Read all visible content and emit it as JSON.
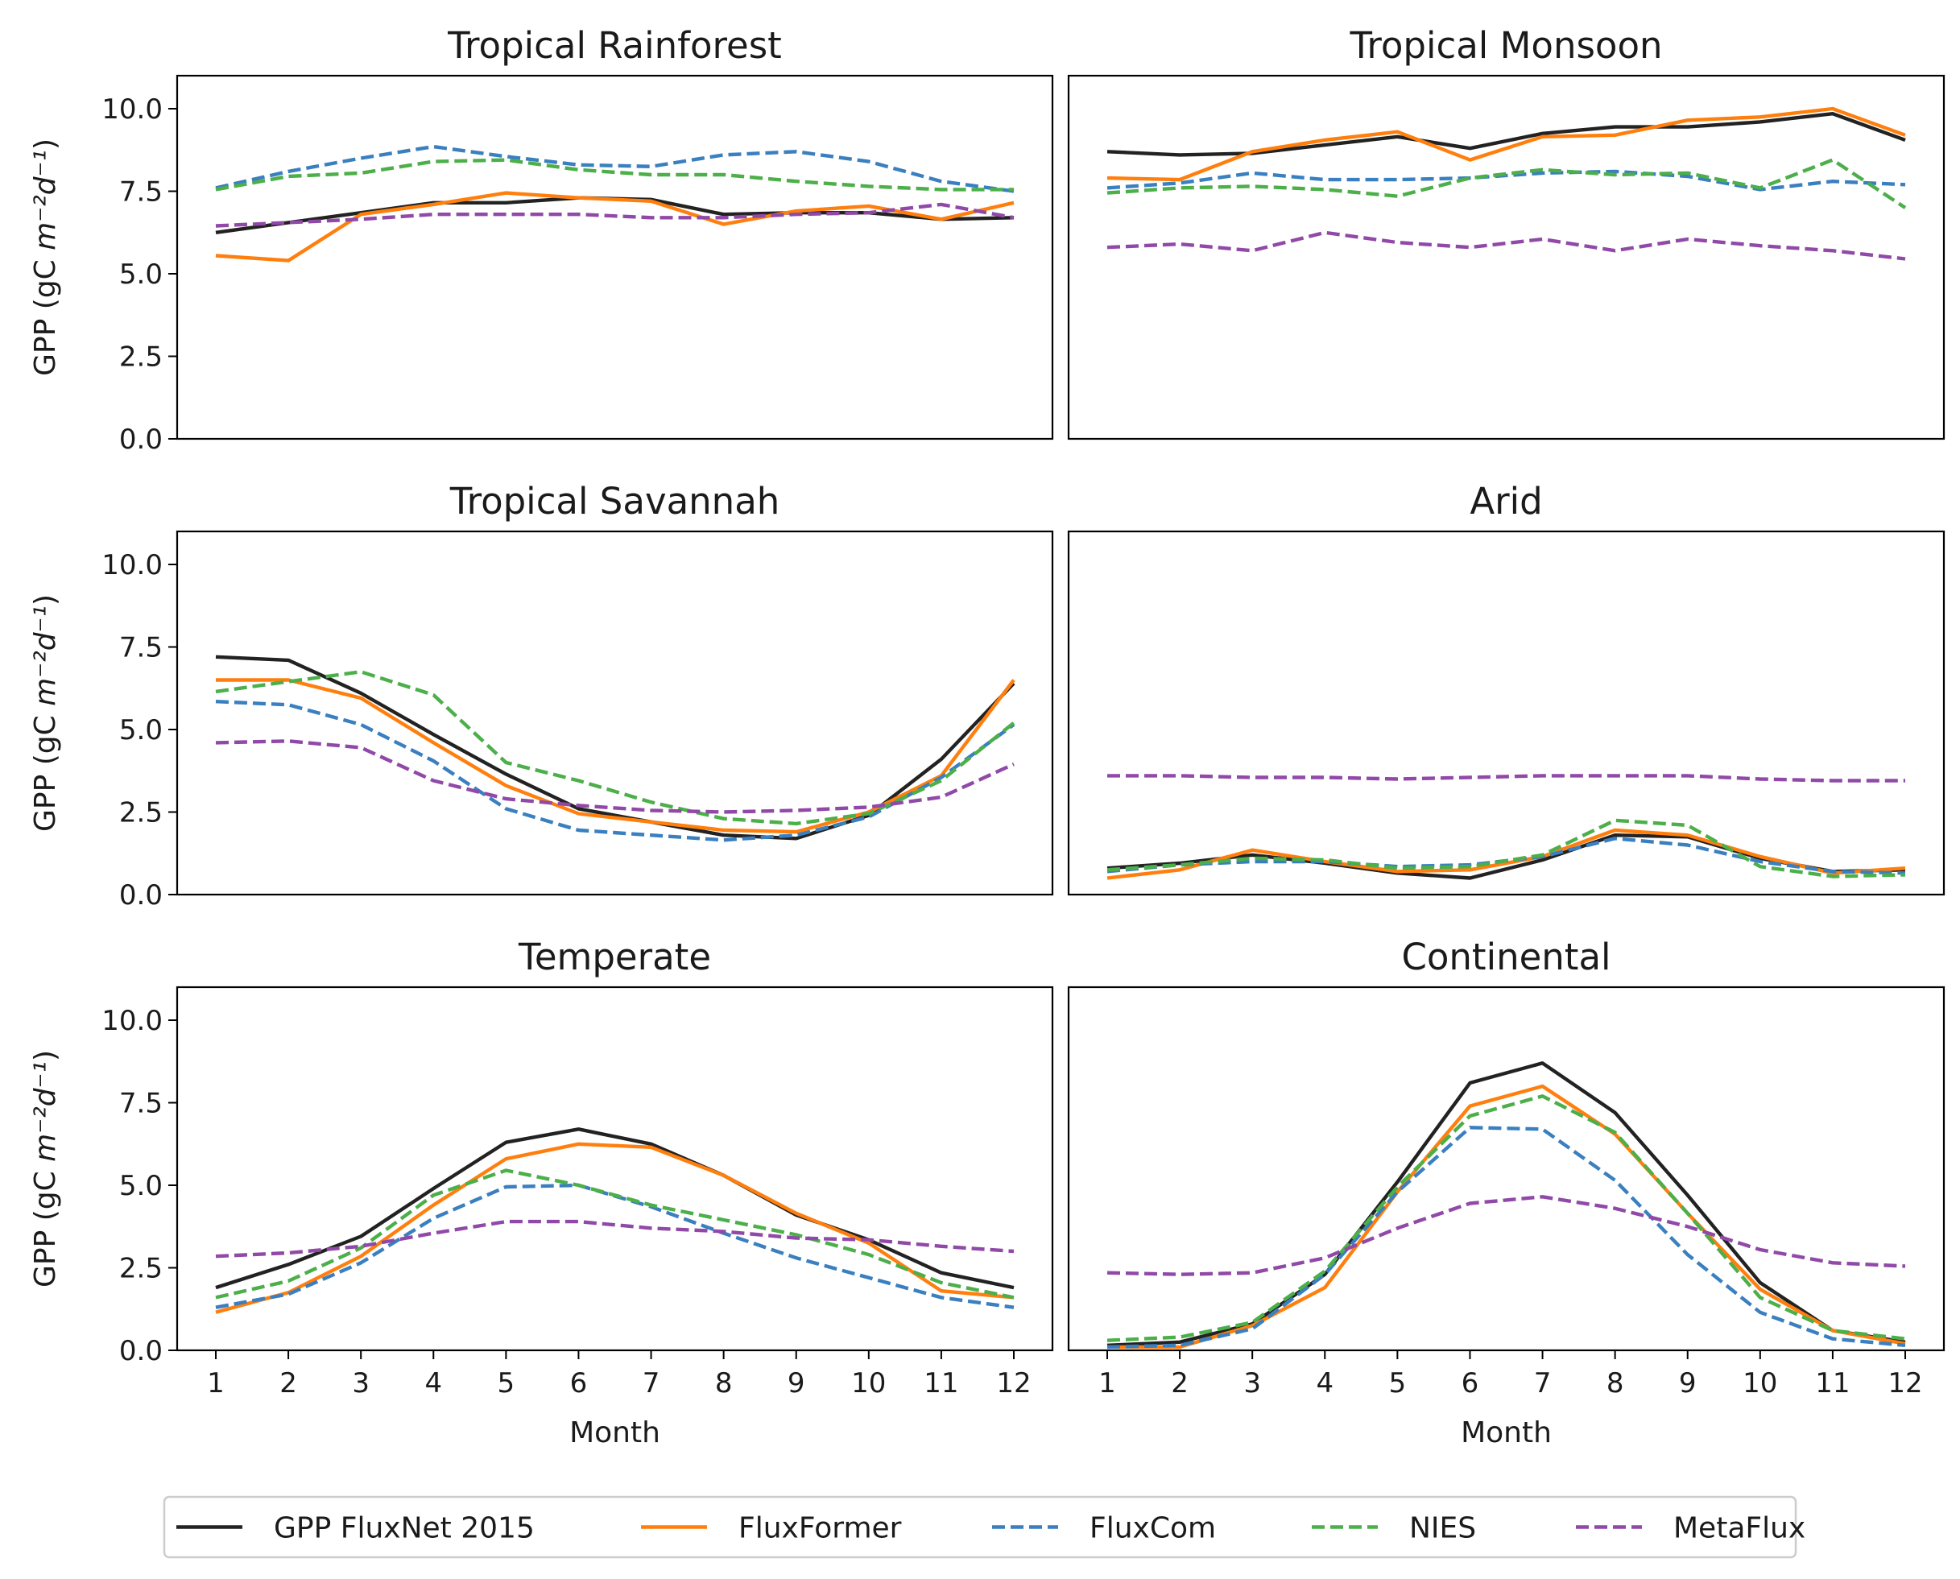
{
  "chart_data": {
    "type": "line",
    "ylabel_main": "GPP (gC ",
    "ylabel_math": "m⁻²d⁻¹",
    "ylabel_close": ")",
    "xlabel": "Month",
    "ylim": [
      0,
      11
    ],
    "yticks": [
      "0.0",
      "2.5",
      "5.0",
      "7.5",
      "10.0"
    ],
    "x": [
      1,
      2,
      3,
      4,
      5,
      6,
      7,
      8,
      9,
      10,
      11,
      12
    ],
    "series_styles": [
      {
        "name": "GPP FluxNet 2015",
        "color": "#222222",
        "dash": "solid"
      },
      {
        "name": "FluxFormer",
        "color": "#ff7f0e",
        "dash": "solid"
      },
      {
        "name": "FluxCom",
        "color": "#3a7fbf",
        "dash": "dashed"
      },
      {
        "name": "NIES",
        "color": "#4caf4a",
        "dash": "dashed"
      },
      {
        "name": "MetaFlux",
        "color": "#9149a8",
        "dash": "dashed"
      }
    ],
    "panels": [
      {
        "title": "Tropical Rainforest",
        "series": [
          [
            6.25,
            6.55,
            6.85,
            7.15,
            7.15,
            7.3,
            7.25,
            6.8,
            6.85,
            6.85,
            6.65,
            6.7
          ],
          [
            5.55,
            5.4,
            6.8,
            7.1,
            7.45,
            7.3,
            7.2,
            6.5,
            6.9,
            7.05,
            6.65,
            7.15
          ],
          [
            7.6,
            8.1,
            8.5,
            8.85,
            8.55,
            8.3,
            8.25,
            8.6,
            8.7,
            8.4,
            7.8,
            7.5
          ],
          [
            7.55,
            7.95,
            8.05,
            8.4,
            8.45,
            8.15,
            8.0,
            8.0,
            7.8,
            7.65,
            7.55,
            7.55
          ],
          [
            6.45,
            6.55,
            6.65,
            6.8,
            6.8,
            6.8,
            6.7,
            6.7,
            6.8,
            6.85,
            7.1,
            6.7
          ]
        ]
      },
      {
        "title": "Tropical Monsoon",
        "series": [
          [
            8.7,
            8.6,
            8.65,
            8.9,
            9.15,
            8.8,
            9.25,
            9.45,
            9.45,
            9.6,
            9.85,
            9.05
          ],
          [
            7.9,
            7.85,
            8.7,
            9.05,
            9.3,
            8.45,
            9.15,
            9.2,
            9.65,
            9.75,
            10.0,
            9.2
          ],
          [
            7.6,
            7.75,
            8.05,
            7.85,
            7.85,
            7.9,
            8.05,
            8.1,
            7.95,
            7.55,
            7.8,
            7.7
          ],
          [
            7.45,
            7.6,
            7.65,
            7.55,
            7.35,
            7.9,
            8.15,
            8.0,
            8.05,
            7.6,
            8.45,
            7.0
          ],
          [
            5.8,
            5.9,
            5.7,
            6.25,
            5.95,
            5.8,
            6.05,
            5.7,
            6.05,
            5.85,
            5.7,
            5.45
          ]
        ]
      },
      {
        "title": "Tropical Savannah",
        "series": [
          [
            7.2,
            7.1,
            6.1,
            4.85,
            3.65,
            2.6,
            2.2,
            1.8,
            1.7,
            2.4,
            4.1,
            6.4
          ],
          [
            6.5,
            6.5,
            5.95,
            4.6,
            3.3,
            2.45,
            2.2,
            1.95,
            1.9,
            2.5,
            3.6,
            6.5
          ],
          [
            5.85,
            5.75,
            5.15,
            4.05,
            2.6,
            1.95,
            1.8,
            1.65,
            1.8,
            2.35,
            3.55,
            5.15
          ],
          [
            6.15,
            6.45,
            6.75,
            6.05,
            4.0,
            3.45,
            2.8,
            2.3,
            2.15,
            2.45,
            3.45,
            5.2
          ],
          [
            4.6,
            4.65,
            4.45,
            3.45,
            2.9,
            2.7,
            2.55,
            2.5,
            2.55,
            2.65,
            2.95,
            3.95
          ]
        ]
      },
      {
        "title": "Arid",
        "series": [
          [
            0.8,
            0.95,
            1.2,
            0.95,
            0.65,
            0.5,
            1.05,
            1.8,
            1.75,
            1.1,
            0.7,
            0.75
          ],
          [
            0.5,
            0.75,
            1.35,
            1.0,
            0.7,
            0.75,
            1.15,
            1.95,
            1.8,
            1.15,
            0.65,
            0.8
          ],
          [
            0.7,
            0.9,
            1.0,
            1.0,
            0.85,
            0.9,
            1.15,
            1.7,
            1.5,
            1.0,
            0.7,
            0.65
          ],
          [
            0.75,
            0.9,
            1.1,
            1.05,
            0.8,
            0.85,
            1.2,
            2.25,
            2.1,
            0.85,
            0.55,
            0.6
          ],
          [
            3.6,
            3.6,
            3.55,
            3.55,
            3.5,
            3.55,
            3.6,
            3.6,
            3.6,
            3.5,
            3.45,
            3.45
          ]
        ]
      },
      {
        "title": "Temperate",
        "series": [
          [
            1.9,
            2.6,
            3.45,
            4.9,
            6.3,
            6.7,
            6.25,
            5.3,
            4.1,
            3.35,
            2.35,
            1.9
          ],
          [
            1.15,
            1.75,
            2.85,
            4.4,
            5.8,
            6.25,
            6.15,
            5.3,
            4.15,
            3.25,
            1.8,
            1.6
          ],
          [
            1.3,
            1.7,
            2.65,
            4.0,
            4.95,
            5.0,
            4.35,
            3.55,
            2.8,
            2.2,
            1.6,
            1.3
          ],
          [
            1.6,
            2.1,
            3.1,
            4.7,
            5.45,
            5.0,
            4.4,
            3.95,
            3.5,
            2.9,
            2.05,
            1.6
          ],
          [
            2.85,
            2.95,
            3.15,
            3.55,
            3.9,
            3.9,
            3.7,
            3.6,
            3.4,
            3.35,
            3.15,
            3.0
          ]
        ]
      },
      {
        "title": "Continental",
        "series": [
          [
            0.15,
            0.25,
            0.8,
            2.3,
            5.1,
            8.1,
            8.7,
            7.2,
            4.7,
            2.05,
            0.6,
            0.25
          ],
          [
            0.1,
            0.1,
            0.75,
            1.9,
            4.8,
            7.4,
            8.0,
            6.55,
            4.15,
            1.85,
            0.6,
            0.2
          ],
          [
            0.1,
            0.15,
            0.65,
            2.3,
            4.8,
            6.75,
            6.7,
            5.15,
            2.9,
            1.15,
            0.35,
            0.15
          ],
          [
            0.3,
            0.4,
            0.85,
            2.4,
            4.95,
            7.1,
            7.7,
            6.6,
            4.15,
            1.6,
            0.6,
            0.35
          ],
          [
            2.35,
            2.3,
            2.35,
            2.8,
            3.7,
            4.45,
            4.65,
            4.3,
            3.75,
            3.05,
            2.65,
            2.55
          ]
        ]
      }
    ],
    "legend": {
      "placement": "bottom-center",
      "ncol": 5
    }
  }
}
